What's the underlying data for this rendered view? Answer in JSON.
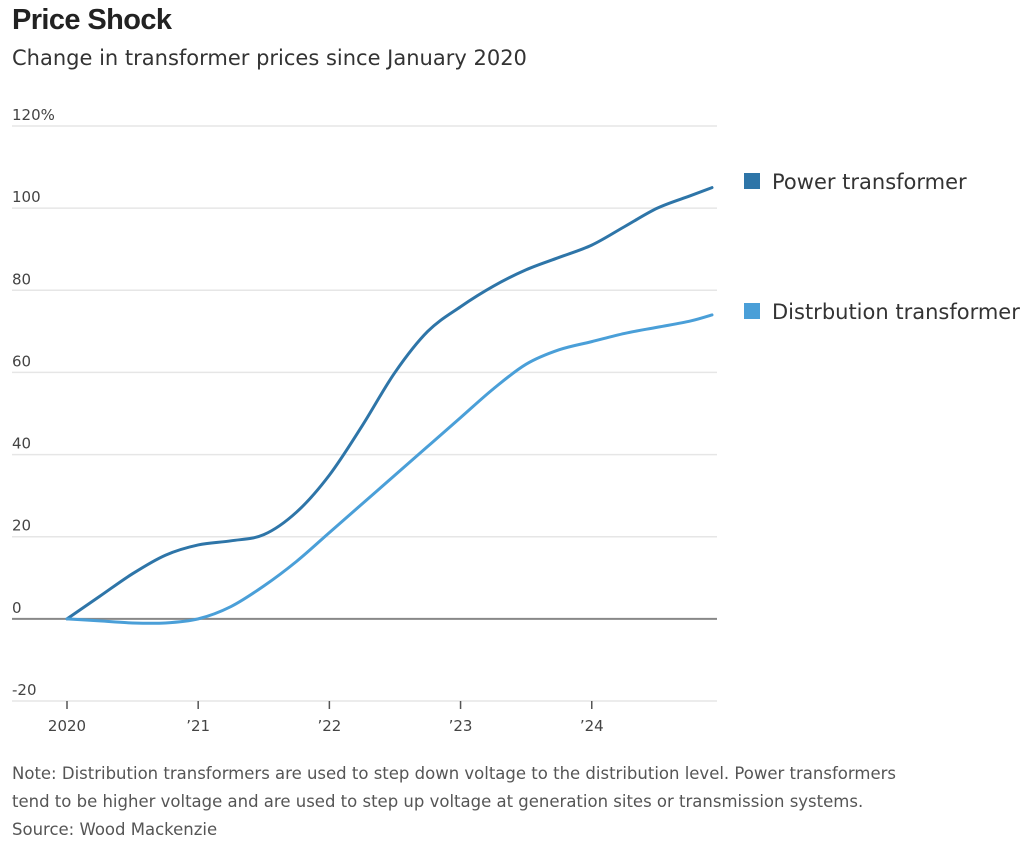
{
  "title": "Price Shock",
  "subtitle": "Change in transformer prices since January 2020",
  "note_line1": "Note: Distribution transformers are used to step down voltage to the distribution level. Power transformers",
  "note_line2": "tend to be higher voltage and are used to step up voltage at generation sites or transmission systems.",
  "source": "Source: Wood Mackenzie",
  "colors": {
    "power": "#2e75a8",
    "distribution": "#4a9fd8",
    "grid": "#e6e6e6",
    "baseline": "#888888"
  },
  "chart_data": {
    "type": "line",
    "ylim": [
      -20,
      120
    ],
    "yticks": [
      -20,
      0,
      20,
      40,
      60,
      80,
      100,
      120
    ],
    "ytick_labels": [
      "-20",
      "0",
      "20",
      "40",
      "60",
      "80",
      "100",
      "120%"
    ],
    "xlim": [
      "2020-01",
      "2024-12"
    ],
    "xticks": [
      "2020-01",
      "2021-01",
      "2022-01",
      "2023-01",
      "2024-01"
    ],
    "xtick_labels": [
      "2020",
      "’21",
      "’22",
      "’23",
      "’24"
    ],
    "legend_position": "right",
    "series": [
      {
        "name": "Power transformer",
        "color_key": "power",
        "x": [
          "2020-01",
          "2020-04",
          "2020-07",
          "2020-10",
          "2021-01",
          "2021-04",
          "2021-07",
          "2021-10",
          "2022-01",
          "2022-04",
          "2022-07",
          "2022-10",
          "2023-01",
          "2023-04",
          "2023-07",
          "2023-10",
          "2024-01",
          "2024-04",
          "2024-07",
          "2024-10",
          "2024-12"
        ],
        "y": [
          0,
          5.5,
          11,
          15.5,
          18,
          19,
          20.5,
          26,
          35,
          47,
          60,
          70,
          76,
          81,
          85,
          88,
          91,
          95.5,
          100,
          103,
          105
        ]
      },
      {
        "name": "Distrbution transformer",
        "color_key": "distribution",
        "x": [
          "2020-01",
          "2020-04",
          "2020-07",
          "2020-10",
          "2021-01",
          "2021-04",
          "2021-07",
          "2021-10",
          "2022-01",
          "2022-04",
          "2022-07",
          "2022-10",
          "2023-01",
          "2023-04",
          "2023-07",
          "2023-10",
          "2024-01",
          "2024-04",
          "2024-07",
          "2024-10",
          "2024-12"
        ],
        "y": [
          0,
          -0.5,
          -1,
          -1,
          0,
          3,
          8,
          14,
          21,
          28,
          35,
          42,
          49,
          56,
          62,
          65.5,
          67.5,
          69.5,
          71,
          72.5,
          74
        ]
      }
    ]
  }
}
